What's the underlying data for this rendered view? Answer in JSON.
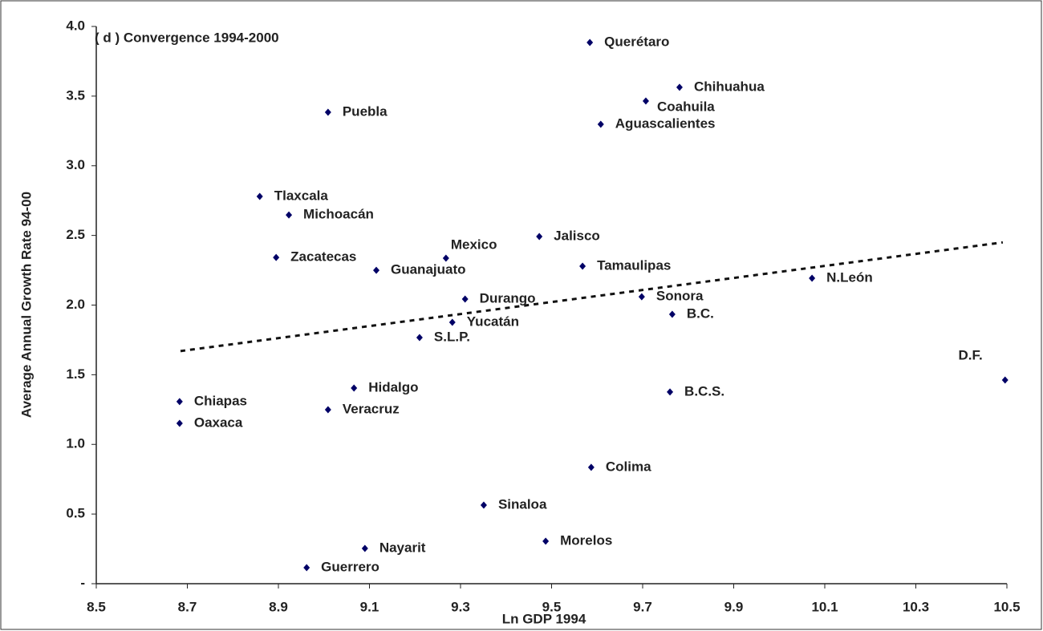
{
  "chart_data": {
    "type": "scatter",
    "title": "( d ) Convergence 1994-2000",
    "x_label": "Ln GDP 1994",
    "y_label": "Average Annual Growth Rate 94-00",
    "color": "#000066",
    "series": [
      {
        "name": "States",
        "labels": [
          "Querétaro",
          "Chihuahua",
          "Coahuila",
          "Aguascalientes",
          "Puebla",
          "Tlaxcala",
          "Michoacán",
          "Zacatecas",
          "Mexico",
          "Guanajuato",
          "Jalisco",
          "Tamaulipas",
          "N.León",
          "Sonora",
          "Durango",
          "B.C.",
          "Yucatán",
          "S.L.P.",
          "D.F.",
          "Chiapas",
          "Hidalgo",
          "B.C.S.",
          "Oaxaca",
          "Veracruz",
          "Colima",
          "Sinaloa",
          "Morelos",
          "Nayarit",
          "Guerrero"
        ],
        "x": [
          9.584,
          9.781,
          9.707,
          9.608,
          9.009,
          8.859,
          8.923,
          8.895,
          9.268,
          9.115,
          9.473,
          9.568,
          10.072,
          9.698,
          9.31,
          9.765,
          9.282,
          9.21,
          10.496,
          8.683,
          9.066,
          9.76,
          8.683,
          9.009,
          9.587,
          9.351,
          9.487,
          9.09,
          8.962
        ],
        "values": [
          3.885,
          3.563,
          3.465,
          3.298,
          3.384,
          2.78,
          2.647,
          2.342,
          2.337,
          2.25,
          2.492,
          2.279,
          2.193,
          2.06,
          2.043,
          1.934,
          1.876,
          1.767,
          1.462,
          1.307,
          1.404,
          1.376,
          1.151,
          1.249,
          0.835,
          0.564,
          0.305,
          0.253,
          0.115
        ]
      }
    ],
    "trendline": {
      "x": [
        8.685,
        10.491
      ],
      "values": [
        1.67,
        2.45
      ]
    },
    "xlim": [
      8.5,
      10.5
    ],
    "xticks": [
      8.5,
      8.7,
      8.9,
      9.1,
      9.3,
      9.5,
      9.7,
      9.9,
      10.1,
      10.3,
      10.5
    ],
    "ylim": [
      0,
      4
    ],
    "yticks": [
      {
        "value": 0,
        "label": "-"
      },
      {
        "value": 0.5,
        "label": "0.5"
      },
      {
        "value": 1,
        "label": "1.0"
      },
      {
        "value": 1.5,
        "label": "1.5"
      },
      {
        "value": 2,
        "label": "2.0"
      },
      {
        "value": 2.5,
        "label": "2.5"
      },
      {
        "value": 3,
        "label": "3.0"
      },
      {
        "value": 3.5,
        "label": "3.5"
      },
      {
        "value": 4,
        "label": "4.0"
      }
    ]
  }
}
